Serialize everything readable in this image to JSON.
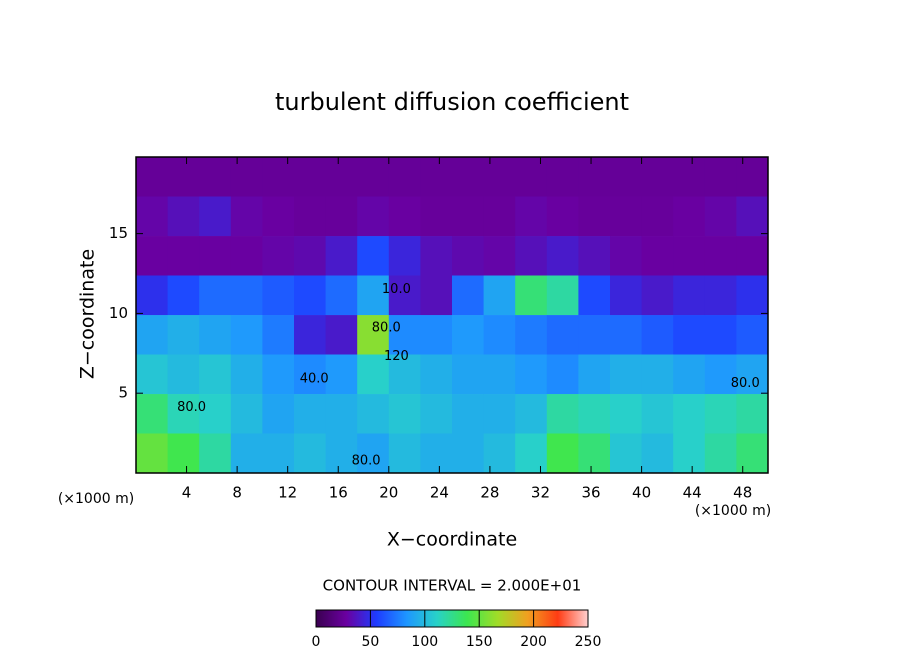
{
  "chart_data": {
    "type": "heatmap",
    "title": "turbulent diffusion coefficient",
    "x_label": "X−coordinate",
    "y_label": "Z−coordinate",
    "x_unit": "(×1000 m)",
    "y_unit": "(×1000 m)",
    "note": "CONTOUR INTERVAL = 2.000E+01",
    "xlim": [
      0,
      50
    ],
    "ylim": [
      0,
      19.8
    ],
    "xticks": [
      4,
      8,
      12,
      16,
      20,
      24,
      28,
      32,
      36,
      40,
      44,
      48
    ],
    "yticks": [
      5,
      10,
      15
    ],
    "x": [
      1.25,
      3.75,
      6.25,
      8.75,
      11.25,
      13.75,
      16.25,
      18.75,
      21.25,
      23.75,
      26.25,
      28.75,
      31.25,
      33.75,
      36.25,
      38.75,
      41.25,
      43.75,
      46.25,
      48.75
    ],
    "y": [
      18.56,
      16.09,
      13.61,
      11.14,
      8.66,
      6.19,
      3.71,
      1.24
    ],
    "z": [
      [
        25,
        25,
        25,
        25,
        25,
        25,
        25,
        25,
        25,
        25,
        25,
        25,
        25,
        25,
        25,
        25,
        25,
        25,
        25,
        25
      ],
      [
        30,
        35,
        40,
        30,
        28,
        26,
        26,
        30,
        28,
        26,
        26,
        26,
        30,
        28,
        26,
        26,
        26,
        28,
        30,
        35
      ],
      [
        28,
        28,
        28,
        28,
        30,
        32,
        40,
        60,
        45,
        35,
        32,
        30,
        35,
        40,
        35,
        30,
        28,
        28,
        28,
        28
      ],
      [
        50,
        60,
        70,
        70,
        65,
        60,
        70,
        90,
        40,
        35,
        70,
        90,
        130,
        120,
        60,
        45,
        40,
        45,
        45,
        50
      ],
      [
        90,
        95,
        90,
        85,
        75,
        45,
        40,
        160,
        80,
        80,
        85,
        80,
        75,
        70,
        70,
        70,
        65,
        60,
        60,
        65
      ],
      [
        105,
        100,
        105,
        95,
        85,
        80,
        85,
        110,
        100,
        95,
        90,
        90,
        85,
        80,
        90,
        95,
        95,
        90,
        85,
        90
      ],
      [
        130,
        115,
        110,
        100,
        90,
        95,
        95,
        100,
        105,
        100,
        95,
        95,
        100,
        120,
        115,
        110,
        105,
        110,
        115,
        120
      ],
      [
        150,
        140,
        120,
        95,
        95,
        100,
        95,
        90,
        100,
        95,
        95,
        100,
        110,
        140,
        130,
        105,
        100,
        110,
        120,
        130
      ]
    ],
    "zlim": [
      0,
      250
    ],
    "zticks": [
      0,
      50,
      100,
      150,
      200,
      250
    ],
    "colormap": [
      "#3a0050",
      "#6a00a0",
      "#1e3cff",
      "#1e96ff",
      "#28d2c8",
      "#3ce650",
      "#a0dc28",
      "#f0a020",
      "#ff3c14",
      "#ffd0d0"
    ],
    "annotations": [
      {
        "text": "10.0",
        "x": 20.6,
        "y": 11.5
      },
      {
        "text": "80.0",
        "x": 19.8,
        "y": 9.1
      },
      {
        "text": "120",
        "x": 20.6,
        "y": 7.3
      },
      {
        "text": "40.0",
        "x": 14.1,
        "y": 5.9
      },
      {
        "text": "80.0",
        "x": 4.4,
        "y": 4.1
      },
      {
        "text": "80.0",
        "x": 18.2,
        "y": 0.75
      },
      {
        "text": "80.0",
        "x": 48.2,
        "y": 5.6
      }
    ]
  }
}
